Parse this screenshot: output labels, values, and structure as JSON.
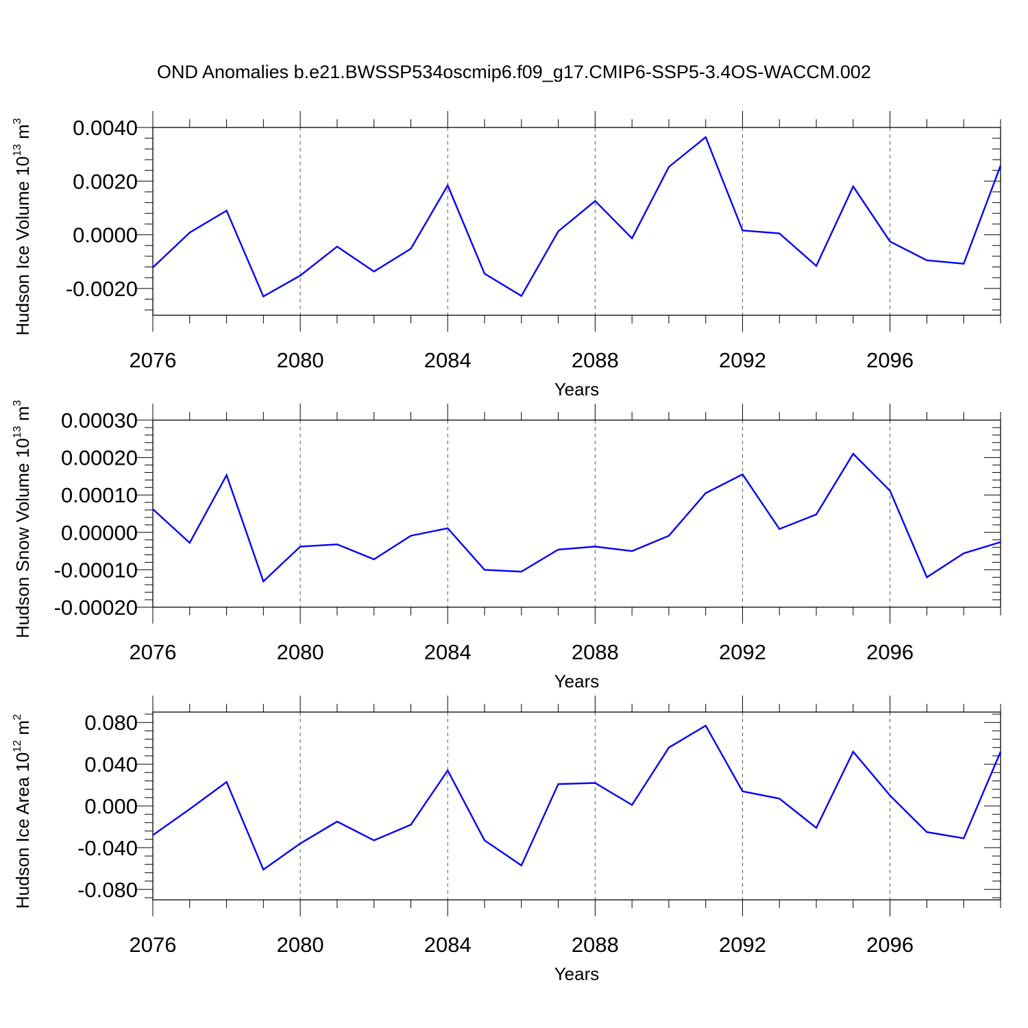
{
  "title": "OND Anomalies b.e21.BWSSP534oscmip6.f09_g17.CMIP6-SSP5-3.4OS-WACCM.002",
  "chart_data": [
    {
      "type": "line",
      "ylabel": {
        "base": "Hudson Ice Volume 10",
        "exp": "13",
        "unit": " m",
        "unit_exp": "3"
      },
      "xlabel": "Years",
      "xlim": [
        2076,
        2099
      ],
      "ylim": [
        -0.003,
        0.004
      ],
      "y_ticks": [
        -0.002,
        0.0,
        0.002,
        0.004
      ],
      "y_tick_labels": [
        "-0.0020",
        "0.0000",
        "0.0020",
        "0.0040"
      ],
      "x_ticks": [
        2076,
        2080,
        2084,
        2088,
        2092,
        2096
      ],
      "x_tick_labels": [
        "2076",
        "2080",
        "2084",
        "2088",
        "2092",
        "2096"
      ],
      "line_color": "#0000ff",
      "x": [
        2076,
        2077,
        2078,
        2079,
        2080,
        2081,
        2082,
        2083,
        2084,
        2085,
        2086,
        2087,
        2088,
        2089,
        2090,
        2091,
        2092,
        2093,
        2094,
        2095,
        2096,
        2097,
        2098,
        2099
      ],
      "values": [
        -0.00122,
        8e-05,
        0.0009,
        -0.0023,
        -0.00152,
        -0.00044,
        -0.00137,
        -0.00052,
        0.00184,
        -0.00145,
        -0.00228,
        0.00013,
        0.00126,
        -0.00013,
        0.00253,
        0.00364,
        0.00016,
        5e-05,
        -0.00116,
        0.0018,
        -0.00025,
        -0.00095,
        -0.00108,
        0.00258
      ]
    },
    {
      "type": "line",
      "ylabel": {
        "base": "Hudson Snow Volume 10",
        "exp": "13",
        "unit": " m",
        "unit_exp": "3"
      },
      "xlabel": "Years",
      "xlim": [
        2076,
        2099
      ],
      "ylim": [
        -0.0002,
        0.0003
      ],
      "y_ticks": [
        -0.0002,
        -0.0001,
        0.0,
        0.0001,
        0.0002,
        0.0003
      ],
      "y_tick_labels": [
        "-0.00020",
        "-0.00010",
        "0.00000",
        "0.00010",
        "0.00020",
        "0.00030"
      ],
      "x_ticks": [
        2076,
        2080,
        2084,
        2088,
        2092,
        2096
      ],
      "x_tick_labels": [
        "2076",
        "2080",
        "2084",
        "2088",
        "2092",
        "2096"
      ],
      "line_color": "#0000ff",
      "x": [
        2076,
        2077,
        2078,
        2079,
        2080,
        2081,
        2082,
        2083,
        2084,
        2085,
        2086,
        2087,
        2088,
        2089,
        2090,
        2091,
        2092,
        2093,
        2094,
        2095,
        2096,
        2097,
        2098,
        2099
      ],
      "values": [
        6.2e-05,
        -2.8e-05,
        0.000153,
        -0.000131,
        -3.8e-05,
        -3.2e-05,
        -7.2e-05,
        -9e-06,
        1.1e-05,
        -0.0001,
        -0.000105,
        -4.6e-05,
        -3.8e-05,
        -5e-05,
        -9e-06,
        0.000105,
        0.000155,
        9e-06,
        4.8e-05,
        0.00021,
        0.000111,
        -0.00012,
        -5.6e-05,
        -2.6e-05
      ]
    },
    {
      "type": "line",
      "ylabel": {
        "base": "Hudson Ice Area 10",
        "exp": "12",
        "unit": " m",
        "unit_exp": "2"
      },
      "xlabel": "Years",
      "xlim": [
        2076,
        2099
      ],
      "ylim": [
        -0.09,
        0.09
      ],
      "y_ticks": [
        -0.08,
        -0.04,
        0.0,
        0.04,
        0.08
      ],
      "y_tick_labels": [
        "-0.080",
        "-0.040",
        "0.000",
        "0.040",
        "0.080"
      ],
      "x_ticks": [
        2076,
        2080,
        2084,
        2088,
        2092,
        2096
      ],
      "x_tick_labels": [
        "2076",
        "2080",
        "2084",
        "2088",
        "2092",
        "2096"
      ],
      "line_color": "#0000ff",
      "x": [
        2076,
        2077,
        2078,
        2079,
        2080,
        2081,
        2082,
        2083,
        2084,
        2085,
        2086,
        2087,
        2088,
        2089,
        2090,
        2091,
        2092,
        2093,
        2094,
        2095,
        2096,
        2097,
        2098,
        2099
      ],
      "values": [
        -0.028,
        -0.003,
        0.023,
        -0.061,
        -0.036,
        -0.015,
        -0.033,
        -0.018,
        0.034,
        -0.033,
        -0.057,
        0.021,
        0.022,
        0.001,
        0.056,
        0.077,
        0.014,
        0.007,
        -0.021,
        0.052,
        0.01,
        -0.025,
        -0.031,
        0.052
      ]
    }
  ]
}
